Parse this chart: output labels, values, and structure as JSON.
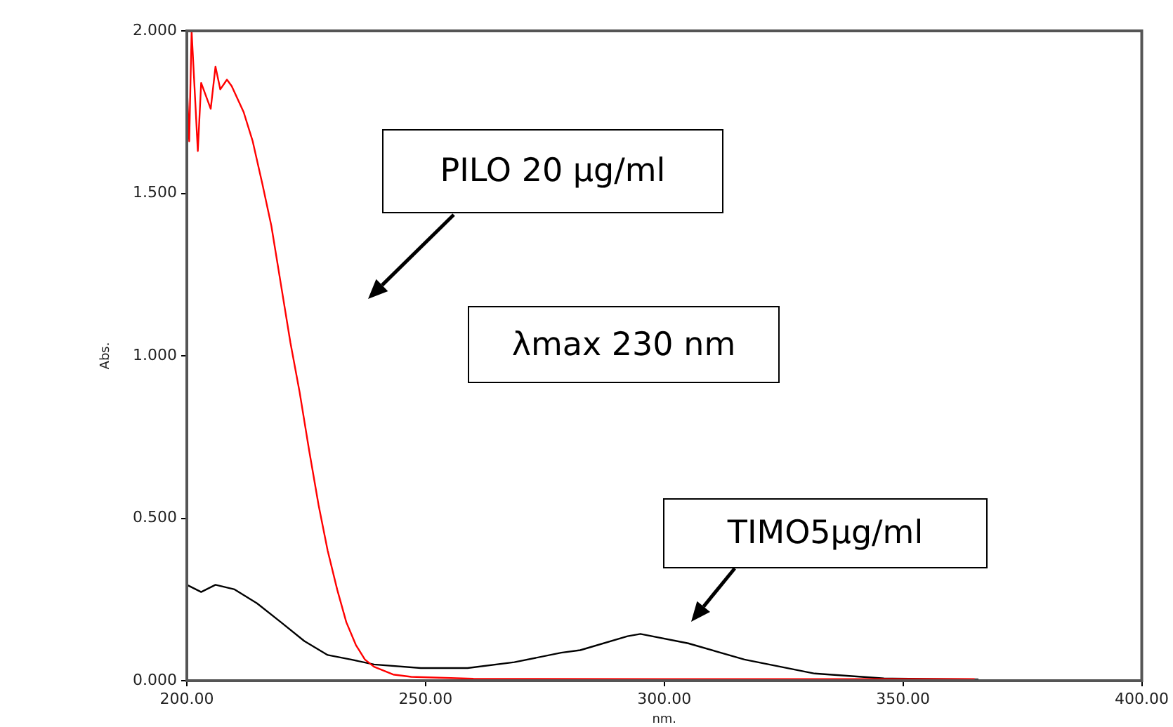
{
  "chart_data": {
    "type": "line",
    "xlabel": "nm.",
    "ylabel": "Abs.",
    "xlim": [
      200,
      400
    ],
    "xticks": [
      {
        "value": 200,
        "label": "200.00"
      },
      {
        "value": 250,
        "label": "250.00"
      },
      {
        "value": 300,
        "label": "300.00"
      },
      {
        "value": 350,
        "label": "350.00"
      },
      {
        "value": 400,
        "label": "400.00"
      }
    ],
    "ylim": [
      0,
      2
    ],
    "yticks": [
      {
        "value": 0,
        "label": "0.000"
      },
      {
        "value": 0.5,
        "label": "0.500"
      },
      {
        "value": 1,
        "label": "1.000"
      },
      {
        "value": 1.5,
        "label": "1.500"
      },
      {
        "value": 2,
        "label": "2.000"
      }
    ],
    "grid": false,
    "legend": false,
    "marker": "none",
    "line_style": "solid",
    "annotations": [
      "PILO 20 µg/ml",
      "λmax 230 nm",
      "TIMO5µg/ml"
    ],
    "series": [
      {
        "color": "#ff0000",
        "x": [
          200,
          200.5,
          201,
          202.3,
          203,
          205,
          206,
          207,
          208.4,
          209.4,
          211.9,
          213.8,
          215.8,
          217.7,
          219.7,
          221.7,
          223.6,
          225.6,
          227.6,
          229.5,
          231.5,
          233.4,
          235.4,
          237.3,
          239.2,
          243.2,
          247,
          260,
          300,
          340,
          365
        ],
        "values": [
          1.84,
          1.66,
          2.0,
          1.63,
          1.84,
          1.76,
          1.89,
          1.82,
          1.85,
          1.83,
          1.75,
          1.66,
          1.53,
          1.4,
          1.22,
          1.04,
          0.89,
          0.71,
          0.54,
          0.4,
          0.28,
          0.18,
          0.11,
          0.065,
          0.043,
          0.019,
          0.012,
          0.006,
          0.005,
          0.005,
          0.005
        ]
      },
      {
        "color": "#000000",
        "x": [
          200,
          203,
          206,
          210,
          214.7,
          219.7,
          224.6,
          229.5,
          234.4,
          239.2,
          249,
          258.8,
          268.6,
          278.4,
          282.4,
          292.3,
          295,
          305,
          316.8,
          331.5,
          346,
          365.8
        ],
        "values": [
          0.295,
          0.273,
          0.295,
          0.281,
          0.238,
          0.18,
          0.122,
          0.079,
          0.065,
          0.05,
          0.039,
          0.039,
          0.057,
          0.086,
          0.094,
          0.137,
          0.144,
          0.115,
          0.065,
          0.022,
          0.007,
          0.004
        ]
      }
    ]
  }
}
